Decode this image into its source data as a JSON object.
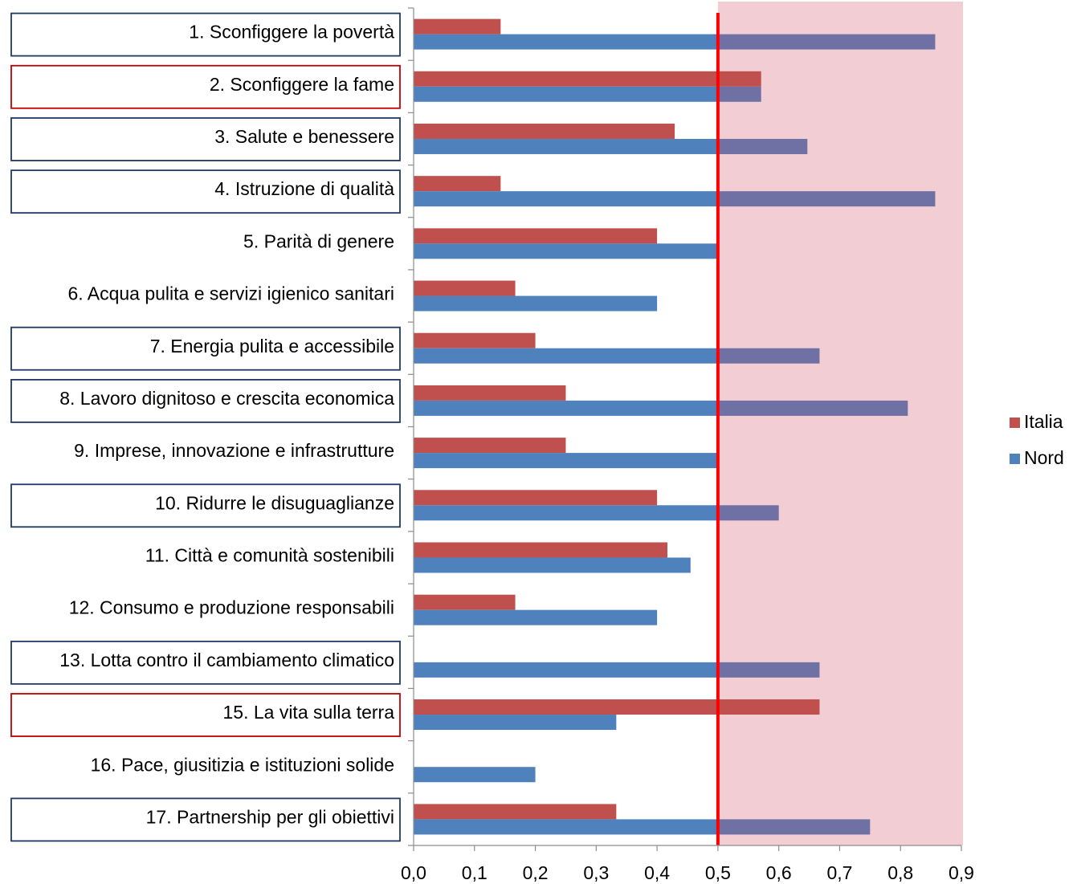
{
  "chart_data": {
    "type": "bar",
    "orientation": "horizontal",
    "categories": [
      "1. Sconfiggere la povertà",
      "2. Sconfiggere la fame",
      "3. Salute e benessere",
      "4. Istruzione di qualità",
      "5. Parità di genere",
      "6. Acqua pulita e servizi igienico sanitari",
      "7. Energia pulita e accessibile",
      "8. Lavoro dignitoso e crescita economica",
      "9. Imprese, innovazione e infrastrutture",
      "10. Ridurre le disuguaglianze",
      "11. Città e comunità sostenibili",
      "12. Consumo e produzione responsabili",
      "13. Lotta contro il cambiamento climatico",
      "15. La vita sulla terra",
      "16. Pace, giusitizia e istituzioni solide",
      "17. Partnership per gli obiettivi"
    ],
    "series": [
      {
        "name": "Italia",
        "color": "#c0504d",
        "values": [
          0.143,
          0.571,
          0.429,
          0.143,
          0.4,
          0.167,
          0.2,
          0.25,
          0.25,
          0.4,
          0.417,
          0.167,
          0,
          0.667,
          0,
          0.333
        ]
      },
      {
        "name": "Nord",
        "color": "#4f81bd",
        "values": [
          0.857,
          0.571,
          0.647,
          0.857,
          0.5,
          0.4,
          0.667,
          0.812,
          0.5,
          0.6,
          0.455,
          0.4,
          0.667,
          0.333,
          0.2,
          0.75
        ]
      }
    ],
    "xlim": [
      0,
      0.9
    ],
    "x_ticks": [
      "0,0",
      "0,1",
      "0,2",
      "0,3",
      "0,4",
      "0,5",
      "0,6",
      "0,7",
      "0,8",
      "0,9"
    ],
    "threshold": 0.5,
    "threshold_color": "#ff0000",
    "highlight_region": [
      0.5,
      0.9
    ],
    "highlight_color": "#f2ced4",
    "overlap_color": "#6f70a3",
    "grid": false,
    "legend_position": "right",
    "boxed_labels": {
      "blue": [
        0,
        2,
        3,
        6,
        7,
        9,
        12,
        15
      ],
      "red": [
        1,
        13
      ],
      "blue_color": "#1f3864",
      "red_color": "#c00000"
    },
    "title": "",
    "xlabel": "",
    "ylabel": ""
  }
}
